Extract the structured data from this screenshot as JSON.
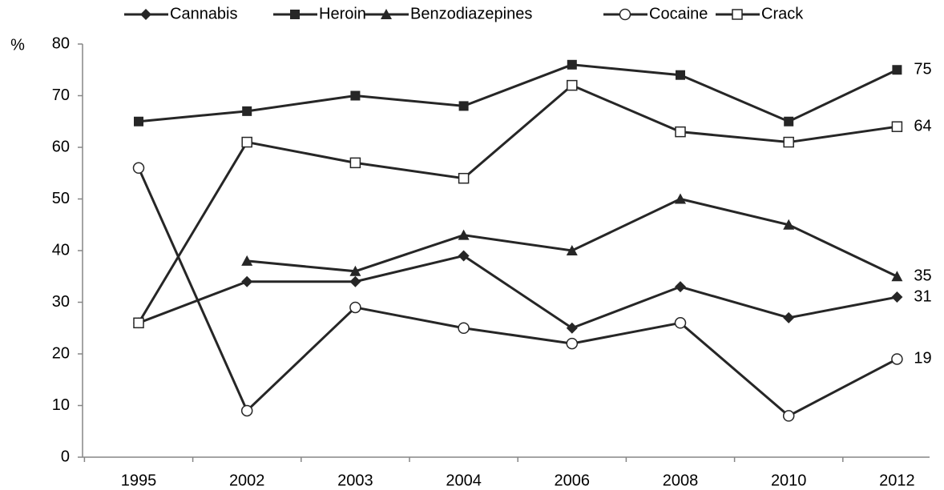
{
  "chart_data": {
    "type": "line",
    "y_label": "%",
    "categories": [
      "1995",
      "2002",
      "2003",
      "2004",
      "2006",
      "2008",
      "2010",
      "2012"
    ],
    "series": [
      {
        "name": "Cannabis",
        "color": "#262626",
        "marker": "diamond",
        "values": [
          26,
          34,
          34,
          39,
          25,
          33,
          27,
          31
        ]
      },
      {
        "name": "Heroin",
        "color": "#262626",
        "marker": "square",
        "values": [
          65,
          67,
          70,
          68,
          76,
          74,
          65,
          75
        ]
      },
      {
        "name": "Benzodiazepines",
        "color": "#262626",
        "marker": "triangle",
        "values": [
          null,
          38,
          36,
          43,
          40,
          50,
          45,
          35
        ]
      },
      {
        "name": "Cocaine",
        "color": "#262626",
        "marker": "open-circle",
        "values": [
          56,
          9,
          29,
          25,
          22,
          26,
          8,
          19
        ]
      },
      {
        "name": "Crack",
        "color": "#262626",
        "marker": "open-square",
        "values": [
          26,
          61,
          57,
          54,
          72,
          63,
          61,
          64
        ]
      }
    ],
    "ylim": [
      0,
      80
    ],
    "yticks": [
      0,
      10,
      20,
      30,
      40,
      50,
      60,
      70,
      80
    ],
    "grid": false,
    "legend": "top"
  }
}
